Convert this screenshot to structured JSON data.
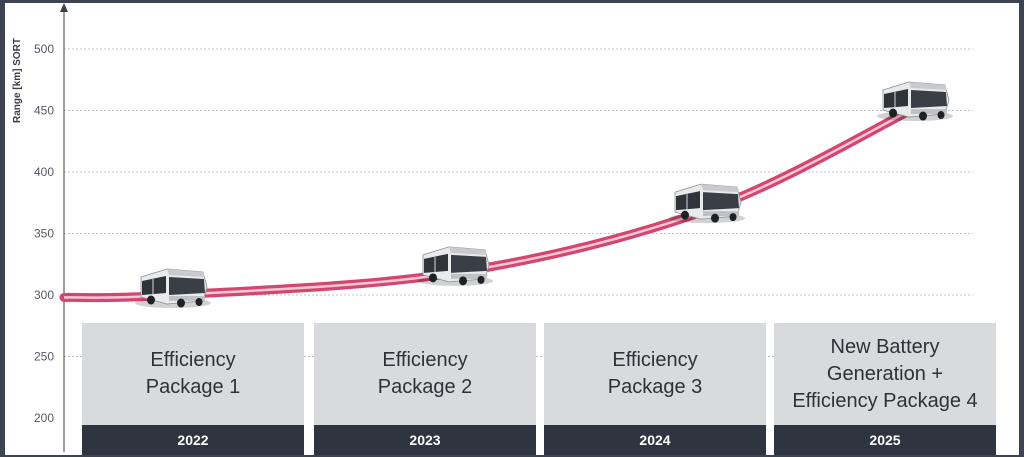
{
  "chart_data": {
    "type": "line",
    "ylabel": "Range [km] SORT",
    "yticks": [
      200,
      250,
      300,
      350,
      400,
      450,
      500
    ],
    "ylim": [
      185,
      535
    ],
    "grid": true,
    "line_color": "#d4466f",
    "x": [
      2022,
      2023,
      2024,
      2025
    ],
    "values": [
      300,
      318,
      369,
      452
    ],
    "categories": [
      {
        "label": "Efficiency\nPackage 1",
        "year": "2022"
      },
      {
        "label": "Efficiency\nPackage 2",
        "year": "2023"
      },
      {
        "label": "Efficiency\nPackage 3",
        "year": "2024"
      },
      {
        "label": "New Battery\nGeneration +\nEfficiency Package 4",
        "year": "2025"
      }
    ],
    "markers": [
      "bus-icon",
      "bus-icon",
      "bus-icon",
      "bus-icon"
    ]
  }
}
